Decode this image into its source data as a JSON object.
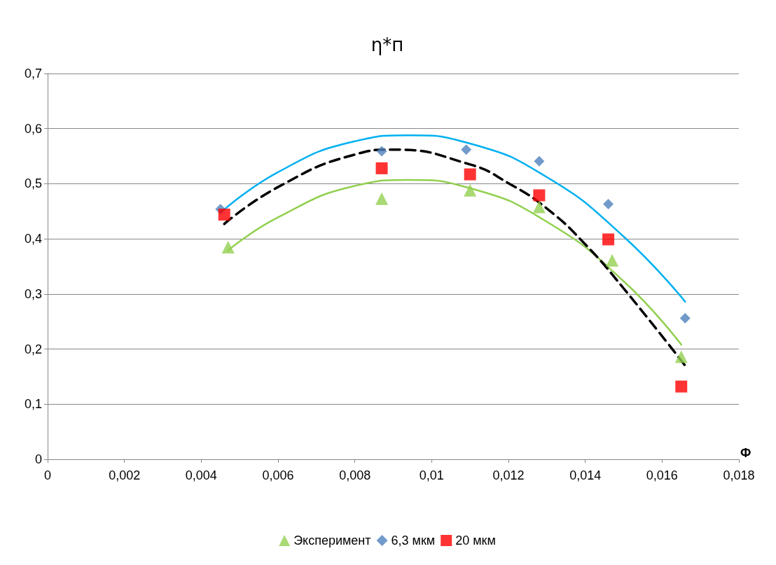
{
  "chart_data": {
    "type": "scatter",
    "title": "η*п",
    "xlabel": "Ф",
    "xlim": [
      0,
      0.018
    ],
    "xticks": [
      {
        "value": 0,
        "label": "0"
      },
      {
        "value": 0.002,
        "label": "0,002"
      },
      {
        "value": 0.004,
        "label": "0,004"
      },
      {
        "value": 0.006,
        "label": "0,006"
      },
      {
        "value": 0.008,
        "label": "0,008"
      },
      {
        "value": 0.01,
        "label": "0,01"
      },
      {
        "value": 0.012,
        "label": "0,012"
      },
      {
        "value": 0.014,
        "label": "0,014"
      },
      {
        "value": 0.016,
        "label": "0,016"
      },
      {
        "value": 0.018,
        "label": "0,018"
      }
    ],
    "ylim": [
      0,
      0.7
    ],
    "yticks": [
      {
        "value": 0,
        "label": "0"
      },
      {
        "value": 0.1,
        "label": "0,1"
      },
      {
        "value": 0.2,
        "label": "0,2"
      },
      {
        "value": 0.3,
        "label": "0,3"
      },
      {
        "value": 0.4,
        "label": "0,4"
      },
      {
        "value": 0.5,
        "label": "0,5"
      },
      {
        "value": 0.6,
        "label": "0,6"
      },
      {
        "value": 0.7,
        "label": "0,7"
      }
    ],
    "grid": "y",
    "legend": "bottom",
    "series": [
      {
        "type": "line",
        "color": "#92d050",
        "marker": "none",
        "line_style": "solid",
        "x": [
          0.0047,
          0.006,
          0.008,
          0.0094,
          0.011,
          0.013,
          0.015,
          0.0165
        ],
        "values": [
          0.379,
          0.439,
          0.496,
          0.507,
          0.492,
          0.431,
          0.323,
          0.208
        ]
      },
      {
        "type": "line",
        "color": "#00b0f0",
        "marker": "none",
        "line_style": "solid",
        "x": [
          0.0045,
          0.006,
          0.008,
          0.0094,
          0.011,
          0.013,
          0.015,
          0.0166
        ],
        "values": [
          0.447,
          0.521,
          0.577,
          0.588,
          0.573,
          0.512,
          0.404,
          0.286
        ]
      },
      {
        "type": "line",
        "color": "#000000",
        "marker": "none",
        "line_style": "dashed",
        "x": [
          0.0046,
          0.006,
          0.008,
          0.009,
          0.011,
          0.012,
          0.013,
          0.014,
          0.015,
          0.0166
        ],
        "values": [
          0.427,
          0.494,
          0.553,
          0.562,
          0.535,
          0.501,
          0.455,
          0.39,
          0.31,
          0.17
        ]
      },
      {
        "name": "Эксперимент",
        "color": "#92d050",
        "marker": "triangle",
        "x": [
          0.0047,
          0.0087,
          0.011,
          0.0128,
          0.0147,
          0.0165
        ],
        "values": [
          0.385,
          0.473,
          0.488,
          0.458,
          0.361,
          0.186
        ]
      },
      {
        "name": "6,3 мкм",
        "color": "#4f81bd",
        "marker": "diamond",
        "x": [
          0.0045,
          0.0087,
          0.0109,
          0.0128,
          0.0146,
          0.0166
        ],
        "values": [
          0.454,
          0.559,
          0.562,
          0.541,
          0.463,
          0.256
        ]
      },
      {
        "name": "20 мкм",
        "color": "#ff0000",
        "marker": "square",
        "x": [
          0.0046,
          0.0087,
          0.011,
          0.0128,
          0.0146,
          0.0165
        ],
        "values": [
          0.444,
          0.528,
          0.517,
          0.479,
          0.399,
          0.132
        ]
      }
    ]
  }
}
